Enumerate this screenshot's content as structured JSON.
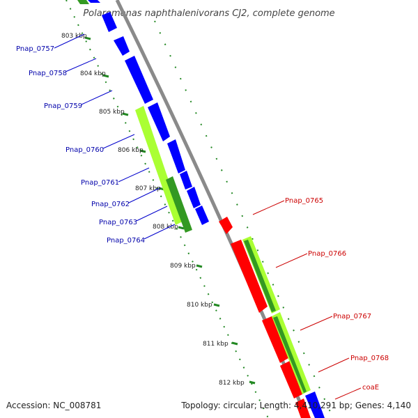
{
  "title": "Polaromonas naphthalenivorans CJ2, complete genome",
  "accession": "Accession: NC_008781",
  "topology": "Topology: circular; Length: 4,410,291 bp; Genes: 4,140",
  "scale_labels": [
    "803 kbp",
    "804 kbp",
    "805 kbp",
    "806 kbp",
    "807 kbp",
    "808 kbp",
    "809 kbp",
    "810 kbp",
    "811 kbp",
    "812 kbp"
  ],
  "left_genes": [
    "Pnap_0757",
    "Pnap_0758",
    "Pnap_0759",
    "Pnap_0760",
    "Pnap_0761",
    "Pnap_0762",
    "Pnap_0763",
    "Pnap_0764"
  ],
  "right_genes": [
    "Pnap_0765",
    "Pnap_0766",
    "Pnap_0767",
    "Pnap_0768",
    "coaE"
  ],
  "colors": {
    "forward": "#0000ff",
    "reverse": "#ff0000",
    "backbone": "#888888",
    "gc_light": "#aaff33",
    "gc_dark": "#339922",
    "tick": "#228822",
    "left_label": "#0000aa",
    "right_label": "#cc0000"
  }
}
